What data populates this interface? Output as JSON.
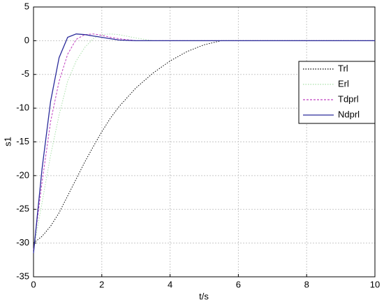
{
  "chart_data": {
    "type": "line",
    "x_label": "t/s",
    "y_label": "s1",
    "x": [
      0,
      0.25,
      0.5,
      0.75,
      1,
      1.25,
      1.5,
      1.75,
      2,
      2.25,
      2.5,
      3,
      3.5,
      4,
      4.5,
      5,
      5.5,
      6,
      10
    ],
    "series": [
      {
        "name": "Trl",
        "color": "#000000",
        "dash": "1.5 2",
        "values": [
          -30,
          -29,
          -27.5,
          -25.5,
          -23,
          -20.5,
          -18,
          -15.7,
          -13.5,
          -11.5,
          -9.8,
          -7,
          -4.8,
          -3,
          -1.6,
          -0.6,
          0,
          0,
          0
        ]
      },
      {
        "name": "Erl",
        "color": "#a8e0a8",
        "dash": "1.5 2",
        "values": [
          -31,
          -24,
          -17,
          -11,
          -6,
          -3,
          -1,
          0.3,
          0.9,
          1,
          0.9,
          0.4,
          0,
          0,
          0,
          0,
          0,
          0,
          0
        ]
      },
      {
        "name": "Tdprl",
        "color": "#c040c0",
        "dash": "3 2",
        "values": [
          -31,
          -21,
          -12,
          -6,
          -2,
          0.2,
          0.9,
          1,
          0.8,
          0.5,
          0.3,
          0,
          0,
          0,
          0,
          0,
          0,
          0,
          0
        ]
      },
      {
        "name": "Ndprl",
        "color": "#2a2a9a",
        "dash": "none",
        "values": [
          -31.5,
          -19,
          -9,
          -2.5,
          0.5,
          1,
          0.9,
          0.7,
          0.5,
          0.3,
          0.1,
          0,
          0,
          0,
          0,
          0,
          0,
          0,
          0
        ]
      }
    ],
    "xlim": [
      0,
      10
    ],
    "xticks": [
      0,
      2,
      4,
      6,
      8,
      10
    ],
    "ylim": [
      -35,
      5
    ],
    "yticks": [
      -35,
      -30,
      -25,
      -20,
      -15,
      -10,
      -5,
      0,
      5
    ],
    "grid": true,
    "legend": "upper right"
  }
}
